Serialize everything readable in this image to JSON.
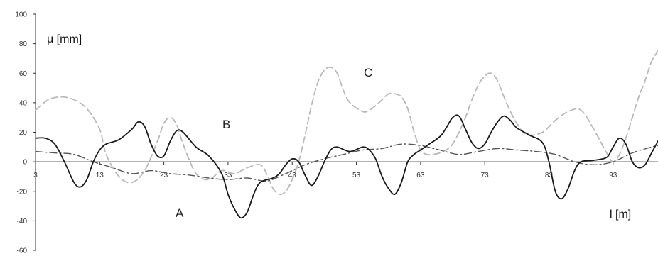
{
  "chart_data": {
    "type": "line",
    "title": "",
    "ylabel": "μ [mm]",
    "xlabel": "l [m]",
    "ylim": [
      -60,
      100
    ],
    "xlim": [
      3,
      100
    ],
    "y_ticks": [
      100,
      80,
      60,
      40,
      20,
      0,
      -20,
      -40,
      -60
    ],
    "x_ticks": [
      3,
      13,
      23,
      33,
      43,
      53,
      63,
      73,
      83,
      93
    ],
    "grid": false,
    "legend": "none",
    "annotations": [
      "A",
      "B",
      "C"
    ],
    "series": [
      {
        "name": "A",
        "style": "solid",
        "color": "#1a1a1a",
        "x": [
          3,
          4.5,
          6,
          7.5,
          9,
          10,
          11,
          12,
          13,
          14,
          16,
          18,
          19,
          20,
          21,
          22,
          23,
          24,
          25,
          26,
          28,
          30,
          32,
          33,
          34,
          35,
          36,
          37,
          38,
          40,
          41,
          42,
          43,
          44,
          45,
          46,
          47,
          48,
          49,
          50,
          52,
          54,
          55,
          56,
          57,
          58,
          59,
          60,
          61,
          62,
          63,
          64,
          66,
          67,
          68,
          69,
          70,
          71,
          72,
          73,
          74,
          75,
          76,
          77,
          78,
          80,
          82,
          83,
          84,
          85,
          86,
          87,
          88,
          90,
          92,
          93,
          94,
          95,
          96,
          97,
          98,
          99,
          100
        ],
        "y": [
          16,
          16,
          12,
          0,
          -14,
          -17,
          -12,
          0,
          8,
          12,
          15,
          22,
          27,
          24,
          12,
          4,
          4,
          14,
          21,
          20,
          10,
          4,
          -8,
          -22,
          -32,
          -38,
          -34,
          -22,
          -14,
          -11,
          -8,
          -2,
          2,
          0,
          -9,
          -16,
          -10,
          0,
          8,
          10,
          7,
          10,
          8,
          2,
          -10,
          -18,
          -22,
          -14,
          0,
          5,
          8,
          11,
          17,
          23,
          30,
          31,
          22,
          13,
          9,
          12,
          20,
          27,
          31,
          28,
          23,
          18,
          13,
          0,
          -20,
          -25,
          -18,
          -6,
          0,
          1,
          3,
          10,
          16,
          12,
          0,
          -4,
          -2,
          6,
          14
        ]
      },
      {
        "name": "B",
        "style": "dash-dot",
        "color": "#555555",
        "x": [
          3,
          6,
          9,
          12,
          15,
          18,
          21,
          24,
          27,
          30,
          33,
          36,
          39,
          42,
          45,
          48,
          51,
          54,
          57,
          60,
          63,
          66,
          69,
          72,
          75,
          78,
          81,
          84,
          87,
          90,
          93,
          96,
          99,
          100
        ],
        "y": [
          7,
          6,
          5,
          0,
          -4,
          -8,
          -6,
          -8,
          -9,
          -11,
          -12,
          -11,
          -13,
          -8,
          -2,
          2,
          5,
          8,
          9,
          12,
          11,
          8,
          5,
          7,
          9,
          8,
          7,
          5,
          0,
          -2,
          0,
          6,
          10,
          11
        ]
      },
      {
        "name": "C",
        "style": "dashed",
        "color": "#b8b8b8",
        "x": [
          3,
          5,
          7,
          9,
          11,
          13,
          14,
          16,
          18,
          20,
          22,
          23,
          24,
          25,
          26,
          28,
          30,
          32,
          34,
          36,
          38,
          39,
          40,
          41,
          42,
          43,
          44,
          45,
          46,
          47,
          48,
          49,
          50,
          51,
          52,
          54,
          55,
          56,
          57,
          58,
          59,
          60,
          61,
          62,
          63,
          64,
          65,
          66,
          67,
          68,
          69,
          70,
          71,
          72,
          73,
          74,
          75,
          76,
          77,
          78,
          79,
          80,
          82,
          84,
          86,
          88,
          90,
          92,
          93,
          94,
          95,
          96,
          97,
          98,
          99,
          100
        ],
        "y": [
          35,
          42,
          44,
          42,
          36,
          22,
          5,
          -10,
          -14,
          -6,
          14,
          26,
          30,
          25,
          12,
          -8,
          -12,
          -6,
          -8,
          -4,
          -2,
          -8,
          -18,
          -22,
          -20,
          -12,
          0,
          18,
          38,
          54,
          62,
          64,
          60,
          48,
          40,
          34,
          35,
          38,
          42,
          46,
          46,
          44,
          36,
          20,
          8,
          5,
          5,
          6,
          8,
          12,
          20,
          30,
          42,
          52,
          58,
          60,
          55,
          44,
          34,
          26,
          20,
          18,
          20,
          28,
          34,
          35,
          22,
          6,
          0,
          5,
          16,
          30,
          44,
          55,
          68,
          75
        ]
      }
    ]
  }
}
